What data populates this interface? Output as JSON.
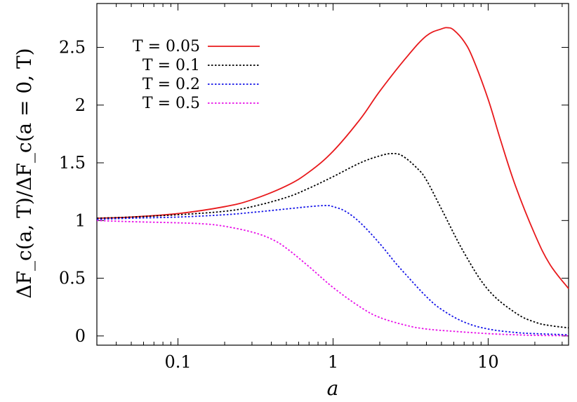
{
  "chart_data": {
    "type": "line",
    "xlabel": "a",
    "ylabel": "ΔF_c(a, T)/ΔF_c(a = 0, T)",
    "xscale": "log",
    "xlim": [
      0.03,
      33
    ],
    "ylim": [
      -0.08,
      2.88
    ],
    "xticks": [
      {
        "value": 0.1,
        "label": "0.1"
      },
      {
        "value": 1,
        "label": "1"
      },
      {
        "value": 10,
        "label": "10"
      }
    ],
    "yticks": [
      {
        "value": 0,
        "label": "0"
      },
      {
        "value": 0.5,
        "label": "0.5"
      },
      {
        "value": 1,
        "label": "1"
      },
      {
        "value": 1.5,
        "label": "1.5"
      },
      {
        "value": 2,
        "label": "2"
      },
      {
        "value": 2.5,
        "label": "2.5"
      }
    ],
    "legend_position": "top-left",
    "grid": false,
    "series": [
      {
        "name": "T = 0.05",
        "color": "#e8191c",
        "dash": "solid",
        "x": [
          0.03,
          0.05,
          0.1,
          0.2,
          0.3,
          0.5,
          0.7,
          1.0,
          1.5,
          2.0,
          3.0,
          4.0,
          5.0,
          5.5,
          6.0,
          7.0,
          8.0,
          10.0,
          12.0,
          15.0,
          20.0,
          25.0,
          33.0
        ],
        "y": [
          1.02,
          1.03,
          1.06,
          1.12,
          1.18,
          1.3,
          1.42,
          1.6,
          1.88,
          2.12,
          2.42,
          2.6,
          2.66,
          2.67,
          2.65,
          2.55,
          2.4,
          2.05,
          1.7,
          1.3,
          0.88,
          0.62,
          0.41
        ]
      },
      {
        "name": "T = 0.1",
        "color": "#000000",
        "dash": "dotted",
        "x": [
          0.03,
          0.05,
          0.1,
          0.2,
          0.3,
          0.5,
          0.7,
          1.0,
          1.5,
          2.0,
          2.4,
          2.8,
          3.5,
          4.0,
          5.0,
          7.0,
          10.0,
          15.0,
          20.0,
          25.0,
          33.0
        ],
        "y": [
          1.02,
          1.03,
          1.05,
          1.08,
          1.12,
          1.2,
          1.28,
          1.38,
          1.5,
          1.56,
          1.58,
          1.56,
          1.45,
          1.35,
          1.1,
          0.72,
          0.4,
          0.2,
          0.12,
          0.09,
          0.07
        ]
      },
      {
        "name": "T = 0.2",
        "color": "#1414e8",
        "dash": "dotted",
        "x": [
          0.03,
          0.05,
          0.1,
          0.2,
          0.3,
          0.5,
          0.7,
          0.9,
          1.0,
          1.2,
          1.5,
          2.0,
          2.5,
          3.0,
          4.0,
          5.0,
          7.0,
          10.0,
          15.0,
          20.0,
          33.0
        ],
        "y": [
          1.01,
          1.02,
          1.03,
          1.05,
          1.07,
          1.1,
          1.12,
          1.13,
          1.12,
          1.08,
          0.98,
          0.8,
          0.64,
          0.52,
          0.34,
          0.23,
          0.12,
          0.06,
          0.03,
          0.02,
          0.01
        ]
      },
      {
        "name": "T = 0.5",
        "color": "#e810e8",
        "dash": "dotted",
        "x": [
          0.03,
          0.05,
          0.1,
          0.15,
          0.2,
          0.3,
          0.4,
          0.5,
          0.7,
          1.0,
          1.5,
          2.0,
          3.0,
          4.0,
          6.0,
          10.0,
          15.0,
          20.0,
          33.0
        ],
        "y": [
          1.0,
          0.99,
          0.98,
          0.97,
          0.95,
          0.9,
          0.84,
          0.76,
          0.6,
          0.42,
          0.25,
          0.16,
          0.09,
          0.06,
          0.04,
          0.02,
          0.01,
          0.005,
          0.002
        ]
      }
    ]
  }
}
